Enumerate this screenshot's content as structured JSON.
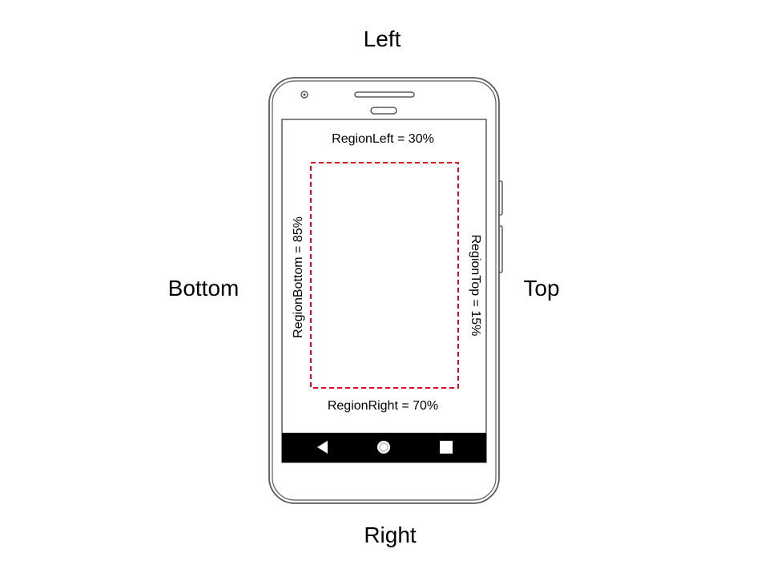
{
  "edges": {
    "left": "Left",
    "right": "Right",
    "bottom": "Bottom",
    "top": "Top"
  },
  "regions": {
    "left": "RegionLeft = 30%",
    "right": "RegionRight = 70%",
    "bottom": "RegionBottom = 85%",
    "top": "RegionTop = 15%"
  },
  "colors": {
    "region_outline": "#e8001c",
    "phone_outline": "#5a5a5a",
    "nav_bar": "#000000",
    "nav_icons": "#ffffff"
  },
  "icons": {
    "nav_back": "back-triangle-icon",
    "nav_home": "home-circle-icon",
    "nav_recents": "recents-square-icon"
  }
}
